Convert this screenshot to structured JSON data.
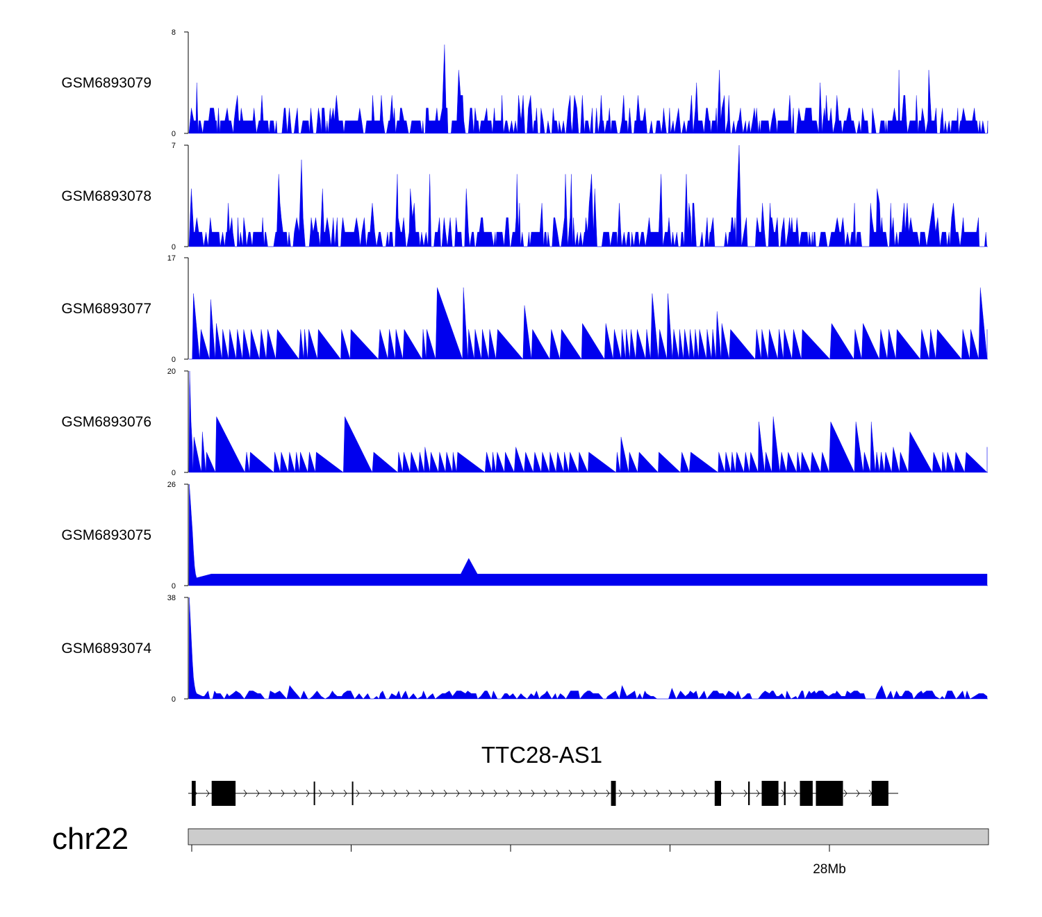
{
  "chart_data": {
    "type": "area",
    "colors": {
      "signal": "#0000ee",
      "exon": "#000000",
      "ideogram": "#cccccc",
      "axis": "#000000"
    },
    "tracks": [
      {
        "name": "GSM6893079",
        "ylim": [
          0,
          8
        ],
        "seed": 79,
        "profile": "spiky"
      },
      {
        "name": "GSM6893078",
        "ylim": [
          0,
          7
        ],
        "seed": 78,
        "profile": "spiky"
      },
      {
        "name": "GSM6893077",
        "ylim": [
          0,
          17
        ],
        "seed": 77,
        "profile": "sparse"
      },
      {
        "name": "GSM6893076",
        "ylim": [
          0,
          20
        ],
        "seed": 76,
        "profile": "sparse"
      },
      {
        "name": "GSM6893075",
        "ylim": [
          0,
          26
        ],
        "seed": 75,
        "profile": "start-peak"
      },
      {
        "name": "GSM6893074",
        "ylim": [
          0,
          38
        ],
        "seed": 74,
        "profile": "start-peak"
      }
    ],
    "gene": {
      "name": "TTC28-AS1",
      "region_mb": [
        27.2,
        28.2
      ],
      "exons_mb": [
        [
          27.2,
          27.205
        ],
        [
          27.225,
          27.255
        ],
        [
          27.353,
          27.3545
        ],
        [
          27.401,
          27.4025
        ],
        [
          27.726,
          27.732
        ],
        [
          27.856,
          27.864
        ],
        [
          27.898,
          27.9
        ],
        [
          27.915,
          27.936
        ],
        [
          27.943,
          27.945
        ],
        [
          27.963,
          27.979
        ],
        [
          27.983,
          28.017
        ],
        [
          28.053,
          28.074
        ]
      ]
    },
    "chromosome": "chr22",
    "axis": {
      "ticks_mb": [
        27.2,
        27.4,
        27.6,
        27.8,
        28.0
      ],
      "labeled_tick_mb": 28.0,
      "labeled_tick_text": "28Mb"
    }
  }
}
